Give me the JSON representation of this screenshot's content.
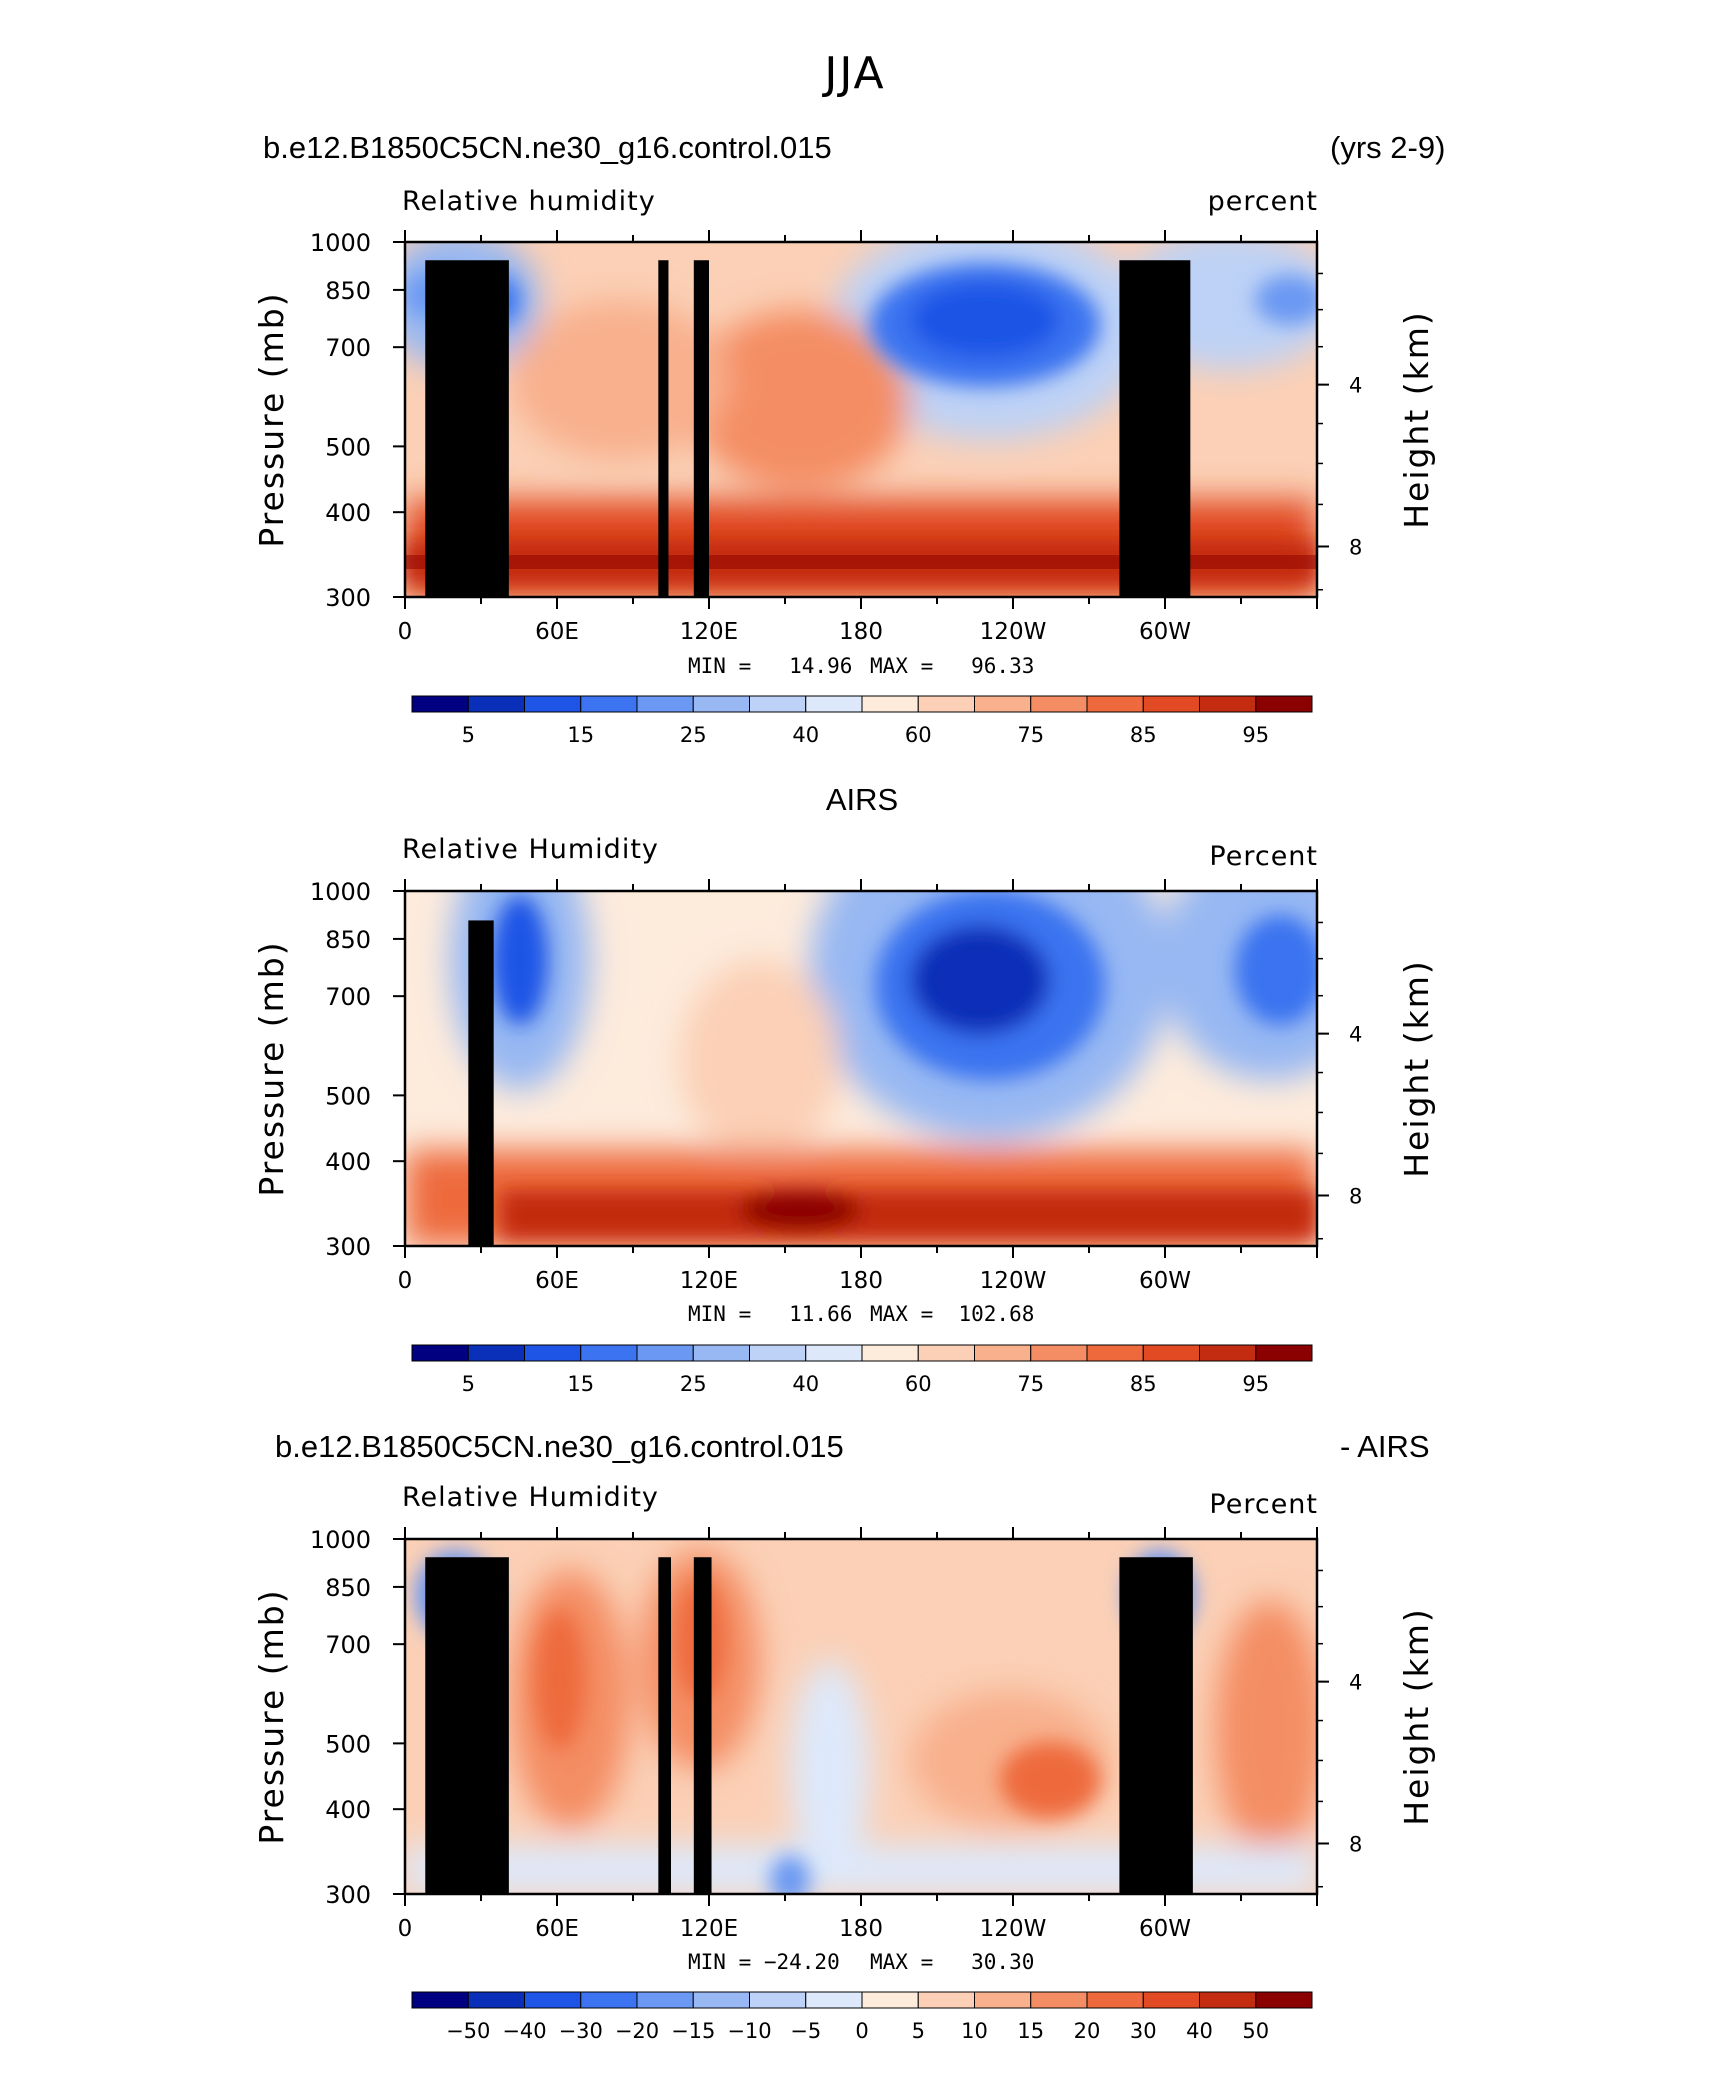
{
  "figure": {
    "title": "JJA"
  },
  "axes": {
    "y_ticks": [
      "300",
      "400",
      "500",
      "700",
      "850",
      "1000"
    ],
    "y_tick_values": [
      300,
      400,
      500,
      700,
      850,
      1000
    ],
    "y_label": "Pressure (mb)",
    "y2_ticks": [
      "8",
      "4"
    ],
    "y2_tick_values": [
      8,
      4
    ],
    "y2_label": "Height (km)",
    "x_ticks": [
      "0",
      "60E",
      "120E",
      "180",
      "120W",
      "60W"
    ],
    "x_tick_values": [
      0,
      60,
      120,
      180,
      240,
      300
    ]
  },
  "chart_data": [
    {
      "type": "heatmap",
      "left_title": "b.e12.B1850C5CN.ne30_g16.control.015",
      "right_title": "(yrs 2-9)",
      "var_label": "Relative humidity",
      "units": "percent",
      "min_label": "MIN =   14.96",
      "max_label": "MAX =   96.33",
      "min": 14.96,
      "max": 96.33,
      "x_range": [
        0,
        360
      ],
      "y_range": [
        1000,
        300
      ],
      "colorbar_labels": [
        "5",
        "15",
        "25",
        "40",
        "60",
        "75",
        "85",
        "95"
      ]
    },
    {
      "type": "heatmap",
      "center_title": "AIRS",
      "var_label": "Relative Humidity",
      "units": "Percent",
      "min_label": "MIN =   11.66",
      "max_label": "MAX =  102.68",
      "min": 11.66,
      "max": 102.68,
      "x_range": [
        0,
        360
      ],
      "y_range": [
        1000,
        300
      ],
      "colorbar_labels": [
        "5",
        "15",
        "25",
        "40",
        "60",
        "75",
        "85",
        "95"
      ]
    },
    {
      "type": "heatmap",
      "left_title": "b.e12.B1850C5CN.ne30_g16.control.015",
      "right_title": "- AIRS",
      "var_label": "Relative Humidity",
      "units": "Percent",
      "min_label": "MIN = −24.20",
      "max_label": "MAX =   30.30",
      "min": -24.2,
      "max": 30.3,
      "x_range": [
        0,
        360
      ],
      "y_range": [
        1000,
        300
      ],
      "colorbar_labels": [
        "−50",
        "−40",
        "−30",
        "−20",
        "−15",
        "−10",
        "−5",
        "0",
        "5",
        "10",
        "15",
        "20",
        "30",
        "40",
        "50"
      ]
    }
  ],
  "colors": {
    "colorbar_16": [
      "#000080",
      "#0a2fb8",
      "#1f55e6",
      "#3b73f0",
      "#6a98f2",
      "#97b8f3",
      "#bdd2f6",
      "#dde9fb",
      "#fdebdc",
      "#fbd0b6",
      "#f8b08d",
      "#f48d64",
      "#ee6a3d",
      "#e14a22",
      "#c32c10",
      "#8b0000"
    ],
    "topography": "#000000"
  }
}
